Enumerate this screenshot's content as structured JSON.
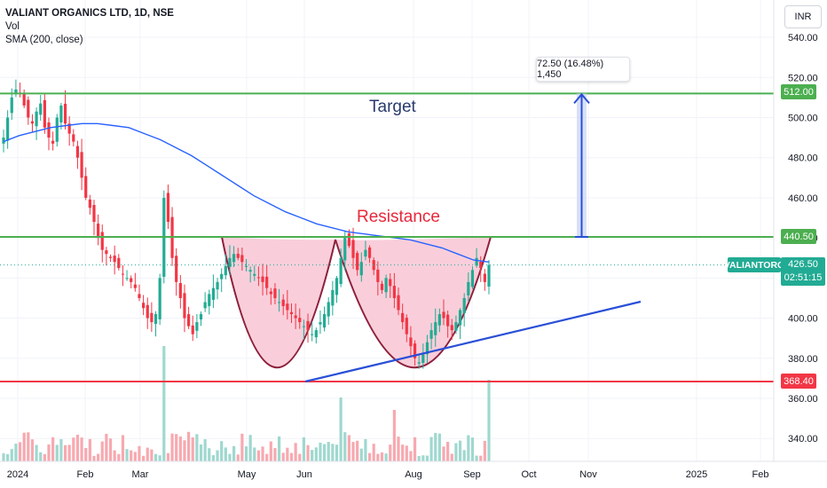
{
  "legend": {
    "title": "VALIANT ORGANICS LTD, 1D, NSE",
    "volume": "Vol",
    "sma": "SMA (200, close)"
  },
  "currency": "INR",
  "symbol": "VALIANTORG",
  "current_price": "426.50",
  "countdown": "02:51:15",
  "measure_label": "72.50 (16.48%) 1,450",
  "annotations": {
    "target": "Target",
    "resistance": "Resistance"
  },
  "levels": {
    "target": {
      "value": 512.0,
      "label": "512.00"
    },
    "resistance": {
      "value": 440.5,
      "label": "440.50"
    },
    "support": {
      "value": 368.4,
      "label": "368.40"
    }
  },
  "colors": {
    "up": "#22ab94",
    "down": "#f23645",
    "vol_up": "#9fd8cf",
    "vol_down": "#f7a9b0",
    "sma": "#2962ff",
    "level_green": "#4caf50",
    "level_red": "#f23645",
    "cup_fill": "#f8c9d6",
    "cup_stroke": "#8e1f3c",
    "trend": "#2a4fd7",
    "arrow": "#2a4fd7"
  },
  "chart_data": {
    "type": "candlestick",
    "y_axis": {
      "ticks": [
        340,
        360,
        380,
        400,
        420,
        440,
        460,
        480,
        500,
        520,
        540
      ],
      "ylim": [
        330,
        545
      ]
    },
    "x_axis": {
      "ticks": [
        "2024",
        "Feb",
        "Mar",
        "May",
        "Jun",
        "Aug",
        "Sep",
        "Oct",
        "Nov",
        "2025",
        "Feb"
      ]
    },
    "price_series": [
      490,
      500,
      510,
      514,
      512,
      506,
      500,
      497,
      503,
      507,
      495,
      490,
      487,
      500,
      506,
      497,
      492,
      488,
      480,
      470,
      460,
      455,
      448,
      440,
      434,
      432,
      430,
      428,
      425,
      422,
      420,
      418,
      415,
      410,
      405,
      400,
      398,
      402,
      420,
      460,
      448,
      430,
      418,
      410,
      400,
      396,
      392,
      398,
      402,
      408,
      412,
      415,
      418,
      422,
      426,
      430,
      432,
      430,
      428,
      426,
      424,
      422,
      420,
      418,
      415,
      412,
      410,
      408,
      406,
      404,
      402,
      400,
      398,
      396,
      394,
      392,
      394,
      398,
      402,
      408,
      414,
      420,
      430,
      440,
      436,
      430,
      424,
      428,
      434,
      430,
      424,
      418,
      414,
      420,
      416,
      410,
      404,
      398,
      392,
      386,
      380,
      378,
      382,
      388,
      394,
      398,
      402,
      400,
      396,
      394,
      398,
      404,
      410,
      418,
      424,
      430,
      425,
      418,
      426.5
    ],
    "sma_200": [
      488,
      491,
      493,
      495,
      496,
      497,
      497,
      496,
      495,
      492,
      489,
      485,
      481,
      476,
      471,
      466,
      461,
      457,
      453,
      450,
      447,
      445,
      443,
      442,
      441,
      440,
      439,
      437,
      435,
      432,
      429,
      428
    ],
    "volume_note": "spike volumes near Mar and at latest bar"
  }
}
